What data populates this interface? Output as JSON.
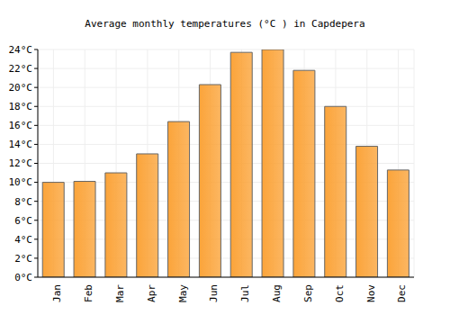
{
  "chart_data": {
    "type": "bar",
    "title": "Average monthly temperatures (°C ) in Capdepera",
    "categories": [
      "Jan",
      "Feb",
      "Mar",
      "Apr",
      "May",
      "Jun",
      "Jul",
      "Aug",
      "Sep",
      "Oct",
      "Nov",
      "Dec"
    ],
    "values": [
      10.0,
      10.1,
      11.0,
      13.0,
      16.4,
      20.3,
      23.7,
      24.0,
      21.8,
      18.0,
      13.8,
      11.3
    ],
    "color": "#fba43a",
    "ylim": [
      0,
      24
    ],
    "yticks": [
      {
        "value": 0,
        "label": "0°C"
      },
      {
        "value": 2,
        "label": "2°C"
      },
      {
        "value": 4,
        "label": "4°C"
      },
      {
        "value": 6,
        "label": "6°C"
      },
      {
        "value": 8,
        "label": "8°C"
      },
      {
        "value": 10,
        "label": "10°C"
      },
      {
        "value": 12,
        "label": "12°C"
      },
      {
        "value": 14,
        "label": "14°C"
      },
      {
        "value": 16,
        "label": "16°C"
      },
      {
        "value": 18,
        "label": "18°C"
      },
      {
        "value": 20,
        "label": "20°C"
      },
      {
        "value": 22,
        "label": "22°C"
      },
      {
        "value": 24,
        "label": "24°C"
      }
    ],
    "grid": true
  }
}
